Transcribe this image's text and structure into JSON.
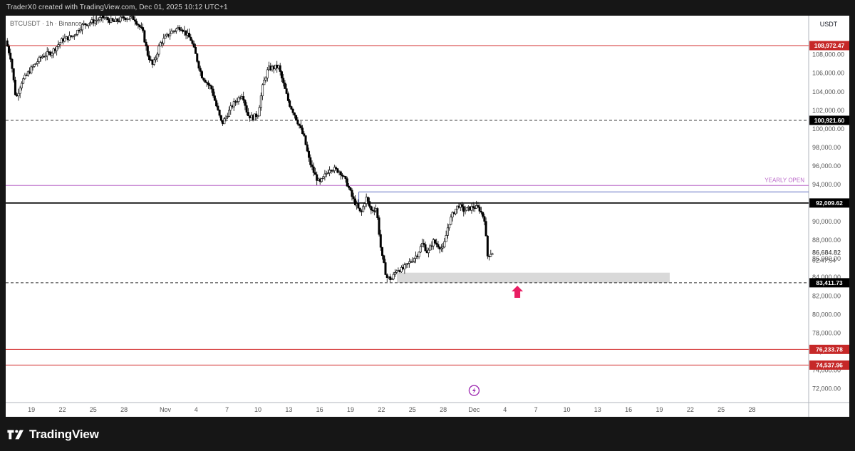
{
  "header": {
    "text": "TraderX0 created with TradingView.com, Dec 01, 2025 10:12 UTC+1"
  },
  "symbol": {
    "text": "BTCUSDT · 1h · Binance"
  },
  "footer": {
    "brand": "TradingView"
  },
  "chart_data": {
    "type": "candlestick",
    "title": "",
    "symbol": "BTCUSDT",
    "quote_currency": "USDT",
    "ylim": [
      70500,
      112200
    ],
    "y_ticks": [
      72000,
      74000,
      76000,
      78000,
      80000,
      82000,
      84000,
      86000,
      88000,
      90000,
      92000,
      94000,
      96000,
      98000,
      100000,
      102000,
      104000,
      106000,
      108000
    ],
    "x_ticks": [
      {
        "label": "19",
        "day": 0
      },
      {
        "label": "22",
        "day": 3
      },
      {
        "label": "25",
        "day": 6
      },
      {
        "label": "28",
        "day": 9
      },
      {
        "label": "Nov",
        "day": 13
      },
      {
        "label": "4",
        "day": 16
      },
      {
        "label": "7",
        "day": 19
      },
      {
        "label": "10",
        "day": 22
      },
      {
        "label": "13",
        "day": 25
      },
      {
        "label": "16",
        "day": 28
      },
      {
        "label": "19",
        "day": 31
      },
      {
        "label": "22",
        "day": 34
      },
      {
        "label": "25",
        "day": 37
      },
      {
        "label": "28",
        "day": 40
      },
      {
        "label": "Dec",
        "day": 43
      },
      {
        "label": "4",
        "day": 46
      },
      {
        "label": "7",
        "day": 49
      },
      {
        "label": "10",
        "day": 52
      },
      {
        "label": "13",
        "day": 55
      },
      {
        "label": "16",
        "day": 58
      },
      {
        "label": "19",
        "day": 61
      },
      {
        "label": "22",
        "day": 64
      },
      {
        "label": "25",
        "day": 67
      },
      {
        "label": "28",
        "day": 70
      }
    ],
    "xlim": [
      -2.5,
      75.5
    ],
    "price_path": [
      [
        -2.5,
        109500
      ],
      [
        -2,
        107600
      ],
      [
        -1.5,
        103200
      ],
      [
        -1,
        105000
      ],
      [
        0,
        106500
      ],
      [
        1,
        107800
      ],
      [
        2,
        108300
      ],
      [
        3,
        109600
      ],
      [
        4,
        110000
      ],
      [
        5,
        111200
      ],
      [
        6,
        111600
      ],
      [
        7,
        112000
      ],
      [
        8,
        111500
      ],
      [
        9,
        112000
      ],
      [
        10,
        111900
      ],
      [
        10.8,
        110500
      ],
      [
        11.3,
        108000
      ],
      [
        11.8,
        106800
      ],
      [
        12.5,
        109200
      ],
      [
        13.5,
        110400
      ],
      [
        14.5,
        111000
      ],
      [
        15.5,
        109600
      ],
      [
        16,
        107800
      ],
      [
        16.5,
        105800
      ],
      [
        17.5,
        104300
      ],
      [
        18,
        102300
      ],
      [
        18.5,
        100500
      ],
      [
        19.5,
        102500
      ],
      [
        20.5,
        103800
      ],
      [
        21,
        101500
      ],
      [
        21.5,
        101200
      ],
      [
        22,
        101600
      ],
      [
        22.5,
        104800
      ],
      [
        23,
        106500
      ],
      [
        24,
        106700
      ],
      [
        24.5,
        104700
      ],
      [
        25,
        102800
      ],
      [
        25.5,
        101700
      ],
      [
        26,
        100400
      ],
      [
        26.5,
        99000
      ],
      [
        27,
        96500
      ],
      [
        27.5,
        95100
      ],
      [
        28,
        94100
      ],
      [
        29,
        95800
      ],
      [
        30,
        95400
      ],
      [
        30.7,
        94000
      ],
      [
        31.2,
        92500
      ],
      [
        31.7,
        91500
      ],
      [
        32,
        90800
      ],
      [
        32.5,
        92600
      ],
      [
        33,
        91200
      ],
      [
        33.5,
        91500
      ],
      [
        34,
        86500
      ],
      [
        34.5,
        84000
      ],
      [
        35,
        83800
      ],
      [
        35.5,
        84900
      ],
      [
        36,
        84800
      ],
      [
        37,
        85900
      ],
      [
        37.5,
        86500
      ],
      [
        38,
        87700
      ],
      [
        38.5,
        86600
      ],
      [
        39,
        87900
      ],
      [
        40,
        87000
      ],
      [
        40.5,
        89700
      ],
      [
        41,
        91000
      ],
      [
        41.5,
        91800
      ],
      [
        42,
        91200
      ],
      [
        42.5,
        91400
      ],
      [
        43,
        91600
      ],
      [
        43.5,
        91400
      ],
      [
        44,
        90300
      ],
      [
        44.3,
        86300
      ],
      [
        44.6,
        86600
      ],
      [
        44.85,
        86680
      ]
    ],
    "levels": [
      {
        "price": 108972.47,
        "label": "108,972.47",
        "style": "solid",
        "color": "#d32f2f",
        "badge": "#c62828"
      },
      {
        "price": 100921.6,
        "label": "100,921.60",
        "style": "dashed",
        "color": "#333333",
        "badge": "#000000"
      },
      {
        "price": 93900,
        "label": "",
        "style": "solid",
        "color": "#ba68c8",
        "badge": "",
        "annotation": "YEARLY OPEN"
      },
      {
        "price": 92009.62,
        "label": "92,009.62",
        "style": "solid-thick",
        "color": "#000000",
        "badge": "#000000"
      },
      {
        "price": 83411.73,
        "label": "83,411.73",
        "style": "dashed",
        "color": "#333333",
        "badge": "#000000"
      },
      {
        "price": 76233.78,
        "label": "76,233.78",
        "style": "solid",
        "color": "#d32f2f",
        "badge": "#c62828"
      },
      {
        "price": 74537.96,
        "label": "74,537.96",
        "style": "solid",
        "color": "#d32f2f",
        "badge": "#c62828"
      }
    ],
    "zone_line": {
      "price": 93200,
      "x_start_day": 31.8,
      "x_end_day": 75.5,
      "color": "#5c6bc0"
    },
    "zone_box": {
      "price_top": 84500,
      "price_bottom": 83400,
      "x_start_day": 35.5,
      "x_end_day": 62,
      "color": "#d9d9d9"
    },
    "arrow": {
      "day": 47.2,
      "price": 82400,
      "color": "#e91e63"
    },
    "current_price": {
      "label": "86,684.82",
      "countdown": "02:47:54",
      "price": 86680
    },
    "event_marker": {
      "day": 43,
      "price": 71800,
      "color": "#9c27b0"
    },
    "colors": {
      "candle": "#000000",
      "background": "#ffffff",
      "grid": "#ffffff",
      "text": "#131722"
    }
  }
}
